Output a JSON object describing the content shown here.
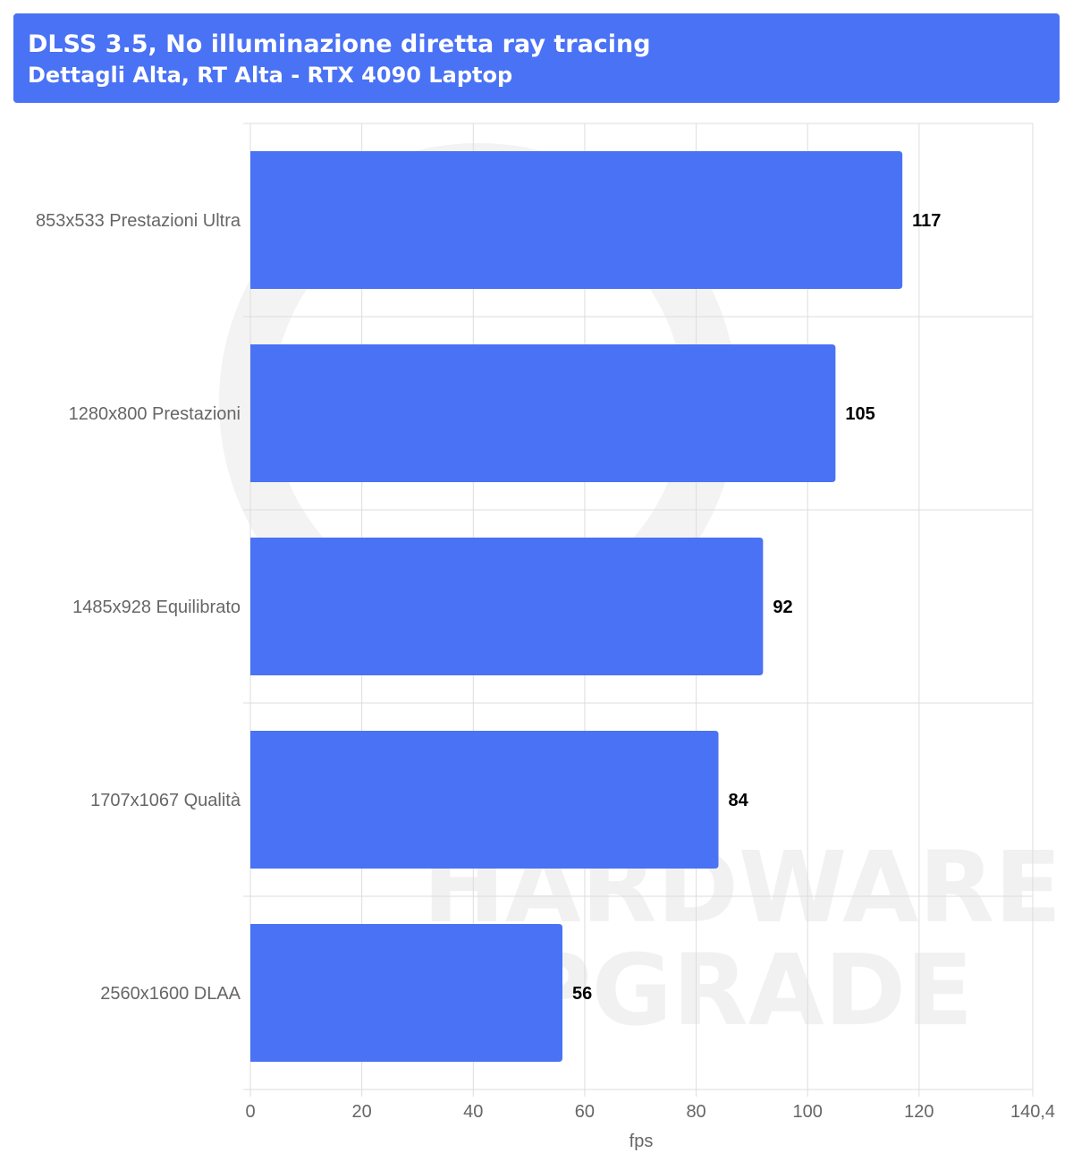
{
  "header": {
    "title": "DLSS 3.5, No illuminazione diretta ray tracing",
    "subtitle": "Dettagli Alta, RT Alta - RTX 4090 Laptop"
  },
  "watermark": {
    "line1": "HARDWARE",
    "line2": "UPGRADE"
  },
  "colors": {
    "bar": "#4a72f5",
    "header": "#4a72f5",
    "grid": "#dddddd"
  },
  "chart_data": {
    "type": "bar",
    "orientation": "horizontal",
    "title": "DLSS 3.5, No illuminazione diretta ray tracing",
    "subtitle": "Dettagli Alta, RT Alta - RTX 4090 Laptop",
    "categories": [
      "853x533 Prestazioni Ultra",
      "1280x800 Prestazioni",
      "1485x928 Equilibrato",
      "1707x1067 Qualità",
      "2560x1600 DLAA"
    ],
    "values": [
      117,
      105,
      92,
      84,
      56
    ],
    "value_labels": [
      "117",
      "105",
      "92",
      "84",
      "56"
    ],
    "xlabel": "fps",
    "ylabel": "",
    "xlim": [
      0,
      140.4
    ],
    "x_ticks": [
      0,
      20,
      40,
      60,
      80,
      100,
      120,
      140.4
    ],
    "x_tick_labels": [
      "0",
      "20",
      "40",
      "60",
      "80",
      "100",
      "120",
      "140,4"
    ],
    "grid": true,
    "legend": "none"
  }
}
